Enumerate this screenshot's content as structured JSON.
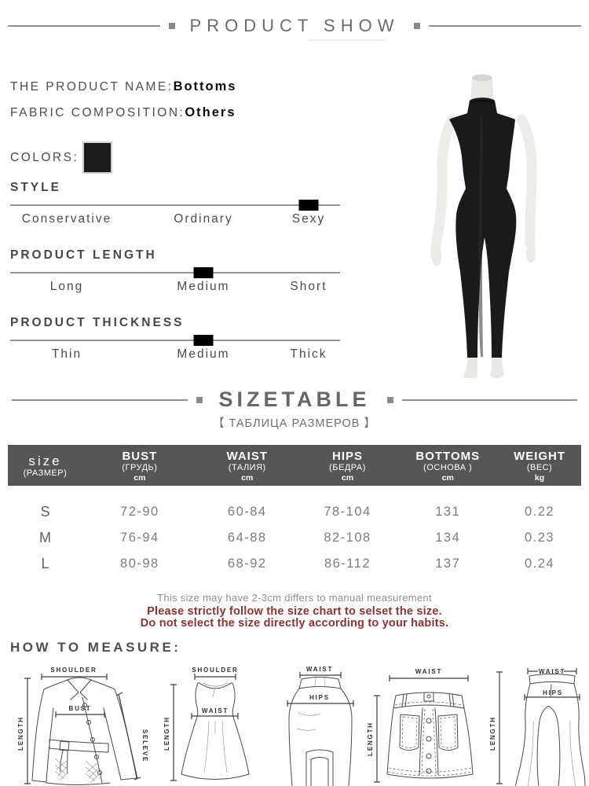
{
  "header": {
    "title": "PRODUCT SHOW"
  },
  "product": {
    "name_label": "THE PRODUCT NAME:",
    "name_value": "Bottoms",
    "fabric_label": "FABRIC COMPOSITION:",
    "fabric_value": "Others",
    "colors_label": "COLORS:",
    "color_swatch_hex": "#1c1c1c"
  },
  "attributes": [
    {
      "label": "STYLE",
      "options": [
        "Conservative",
        "Ordinary",
        "Sexy"
      ],
      "selected": "Sexy",
      "selected_index": 2
    },
    {
      "label": "PRODUCT LENGTH",
      "options": [
        "Long",
        "Medium",
        "Short"
      ],
      "selected": "Medium",
      "selected_index": 1
    },
    {
      "label": "PRODUCT THICKNESS",
      "options": [
        "Thin",
        "Medium",
        "Thick"
      ],
      "selected": "Medium",
      "selected_index": 1
    }
  ],
  "photo": {
    "description": "black sleeveless jumpsuit on white mannequin"
  },
  "sizetable": {
    "title": "SIZETABLE",
    "subtitle": "【 ТАБЛИЦА РАЗМЕРОВ 】",
    "header_bg": "#565658",
    "columns": [
      {
        "en": "size",
        "ru": "(РАЗМЕР)",
        "unit": ""
      },
      {
        "en": "BUST",
        "ru": "(ГРУДЬ)",
        "unit": "cm"
      },
      {
        "en": "WAIST",
        "ru": "(ТАЛИЯ)",
        "unit": "cm"
      },
      {
        "en": "HIPS",
        "ru": "(БЕДРА)",
        "unit": "cm"
      },
      {
        "en": "BOTTOMS",
        "ru": "(ОСНОВА )",
        "unit": "cm"
      },
      {
        "en": "WEIGHT",
        "ru": "(ВЕС)",
        "unit": "kg"
      }
    ],
    "rows": [
      {
        "size": "S",
        "bust": "72-90",
        "waist": "60-84",
        "hips": "78-104",
        "bottoms": "131",
        "weight": "0.22"
      },
      {
        "size": "M",
        "bust": "76-94",
        "waist": "64-88",
        "hips": "82-108",
        "bottoms": "134",
        "weight": "0.23"
      },
      {
        "size": "L",
        "bust": "80-98",
        "waist": "68-92",
        "hips": "86-112",
        "bottoms": "137",
        "weight": "0.24"
      }
    ]
  },
  "notes": {
    "measurement": "This size may have 2-3cm differs to manual measurement",
    "warning1": "Please strictly follow the size chart to selset the size.",
    "warning2": "Do not select the size directly according to your habits.",
    "warning_color": "#8e3232"
  },
  "measure": {
    "title": "HOW TO MEASURE:",
    "labels": {
      "coat_shoulder": "SHOULDER",
      "coat_length": "LENGTH",
      "coat_bust": "BUST",
      "coat_sleeve": "SELEVE",
      "dress_shoulder": "SHOULDER",
      "dress_length": "LENGTH",
      "dress_waist": "WAIST",
      "skirt_waist": "WAIST",
      "skirt_hips": "HIPS",
      "miniskirt_waist": "WAIST",
      "miniskirt_length": "LENGTH",
      "pants_waist": "WAIST",
      "pants_hips": "HIPS",
      "pants_length": "LENGTH"
    }
  }
}
